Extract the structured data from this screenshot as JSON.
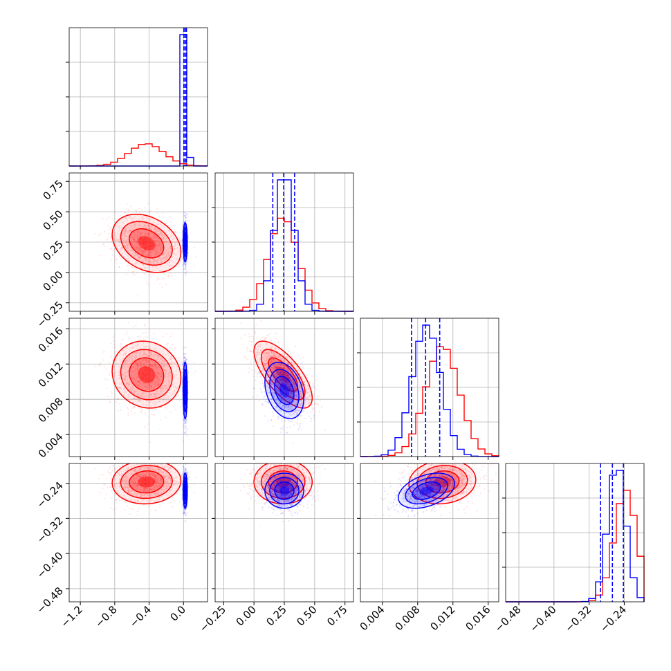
{
  "chart_data": {
    "type": "corner",
    "parameters": 4,
    "colors": {
      "series_a": "#ff0000",
      "series_b": "#0000ff",
      "grid": "#b0b0b0",
      "axes": "#000000"
    },
    "series": [
      {
        "color": "#ff0000",
        "means": [
          -0.43,
          0.24,
          0.0108,
          -0.237
        ],
        "sds": [
          0.2,
          0.12,
          0.0019,
          0.025
        ],
        "correlations": [
          -0.3,
          -0.1,
          0.05,
          -0.7,
          0.0,
          0.1
        ]
      },
      {
        "color": "#0000ff",
        "means": [
          0.02,
          0.25,
          0.009,
          -0.257
        ],
        "sds": [
          0.012,
          0.08,
          0.0016,
          0.02
        ],
        "correlations": [
          0,
          0,
          0,
          -0.3,
          0.0,
          0.4
        ]
      }
    ],
    "axes": [
      {
        "lim": [
          -1.33,
          0.28
        ],
        "ticks": [
          -1.2,
          -0.8,
          -0.4,
          0.0
        ],
        "tick_labels": [
          "−1.2",
          "−0.8",
          "−0.4",
          "0.0"
        ]
      },
      {
        "lim": [
          -0.32,
          0.82
        ],
        "ticks": [
          -0.25,
          0.0,
          0.25,
          0.5,
          0.75
        ],
        "tick_labels": [
          "−0.25",
          "0.00",
          "0.25",
          "0.50",
          "0.75"
        ]
      },
      {
        "lim": [
          0.0015,
          0.0172
        ],
        "ticks": [
          0.004,
          0.008,
          0.012,
          0.016
        ],
        "tick_labels": [
          "0.004",
          "0.008",
          "0.012",
          "0.016"
        ]
      },
      {
        "lim": [
          -0.51,
          -0.195
        ],
        "ticks": [
          -0.48,
          -0.4,
          -0.32,
          -0.24
        ],
        "tick_labels": [
          "−0.48",
          "−0.40",
          "−0.32",
          "−0.24"
        ]
      }
    ],
    "quantile_lines": [
      {
        "param": 0,
        "values": [
          0.005,
          0.02,
          0.035
        ]
      },
      {
        "param": 1,
        "values": [
          0.155,
          0.245,
          0.335
        ]
      },
      {
        "param": 2,
        "values": [
          0.0073,
          0.0089,
          0.0105
        ]
      },
      {
        "param": 3,
        "values": [
          -0.294,
          -0.267,
          -0.242
        ]
      }
    ],
    "grid": true
  }
}
